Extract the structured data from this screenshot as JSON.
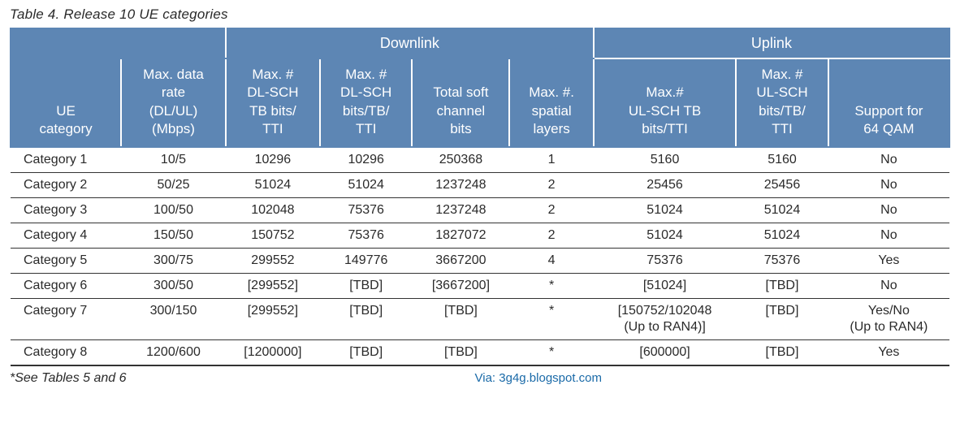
{
  "caption": "Table 4. Release 10 UE categories",
  "footnote": "*See Tables 5 and 6",
  "via": "Via: 3g4g.blogspot.com",
  "colors": {
    "header_bg": "#5d86b4",
    "header_text": "#ffffff",
    "body_text": "#2a2a2a",
    "rule": "#333333",
    "via_color": "#1a6aa8"
  },
  "font": {
    "family": "Arial",
    "caption_size_pt": 13,
    "header_size_pt": 13,
    "body_size_pt": 12
  },
  "groups": {
    "blank_left_span": 2,
    "downlink_label": "Downlink",
    "downlink_span": 4,
    "uplink_label": "Uplink",
    "uplink_span": 3
  },
  "columns": [
    {
      "key": "cat",
      "label": "UE\ncategory",
      "align": "left"
    },
    {
      "key": "rate",
      "label": "Max. data\nrate\n(DL/UL)\n(Mbps)",
      "align": "center"
    },
    {
      "key": "dl_tb",
      "label": "Max. #\nDL-SCH\nTB bits/\nTTI",
      "align": "center"
    },
    {
      "key": "dl_bits",
      "label": "Max. #\nDL-SCH\nbits/TB/\nTTI",
      "align": "center"
    },
    {
      "key": "soft",
      "label": "Total soft\nchannel\nbits",
      "align": "center"
    },
    {
      "key": "layers",
      "label": "Max. #.\nspatial\nlayers",
      "align": "center"
    },
    {
      "key": "ul_tb",
      "label": "Max.#\nUL-SCH TB\nbits/TTI",
      "align": "center"
    },
    {
      "key": "ul_bits",
      "label": "Max. #\nUL-SCH\nbits/TB/\nTTI",
      "align": "center"
    },
    {
      "key": "qam",
      "label": "Support for\n64 QAM",
      "align": "center"
    }
  ],
  "rows": [
    {
      "cat": "Category 1",
      "rate": "10/5",
      "dl_tb": "10296",
      "dl_bits": "10296",
      "soft": "250368",
      "layers": "1",
      "ul_tb": "5160",
      "ul_bits": "5160",
      "qam": "No"
    },
    {
      "cat": "Category 2",
      "rate": "50/25",
      "dl_tb": "51024",
      "dl_bits": "51024",
      "soft": "1237248",
      "layers": "2",
      "ul_tb": "25456",
      "ul_bits": "25456",
      "qam": "No"
    },
    {
      "cat": "Category 3",
      "rate": "100/50",
      "dl_tb": "102048",
      "dl_bits": "75376",
      "soft": "1237248",
      "layers": "2",
      "ul_tb": "51024",
      "ul_bits": "51024",
      "qam": "No"
    },
    {
      "cat": "Category 4",
      "rate": "150/50",
      "dl_tb": "150752",
      "dl_bits": "75376",
      "soft": "1827072",
      "layers": "2",
      "ul_tb": "51024",
      "ul_bits": "51024",
      "qam": "No"
    },
    {
      "cat": "Category 5",
      "rate": "300/75",
      "dl_tb": "299552",
      "dl_bits": "149776",
      "soft": "3667200",
      "layers": "4",
      "ul_tb": "75376",
      "ul_bits": "75376",
      "qam": "Yes"
    },
    {
      "cat": "Category 6",
      "rate": "300/50",
      "dl_tb": "[299552]",
      "dl_bits": "[TBD]",
      "soft": "[3667200]",
      "layers": "*",
      "ul_tb": "[51024]",
      "ul_bits": "[TBD]",
      "qam": "No"
    },
    {
      "cat": "Category 7",
      "rate": "300/150",
      "dl_tb": "[299552]",
      "dl_bits": "[TBD]",
      "soft": "[TBD]",
      "layers": "*",
      "ul_tb": "[150752/102048\n(Up to RAN4)]",
      "ul_bits": "[TBD]",
      "qam": "Yes/No\n(Up to RAN4)"
    },
    {
      "cat": "Category 8",
      "rate": "1200/600",
      "dl_tb": "[1200000]",
      "dl_bits": "[TBD]",
      "soft": "[TBD]",
      "layers": "*",
      "ul_tb": "[600000]",
      "ul_bits": "[TBD]",
      "qam": "Yes"
    }
  ]
}
